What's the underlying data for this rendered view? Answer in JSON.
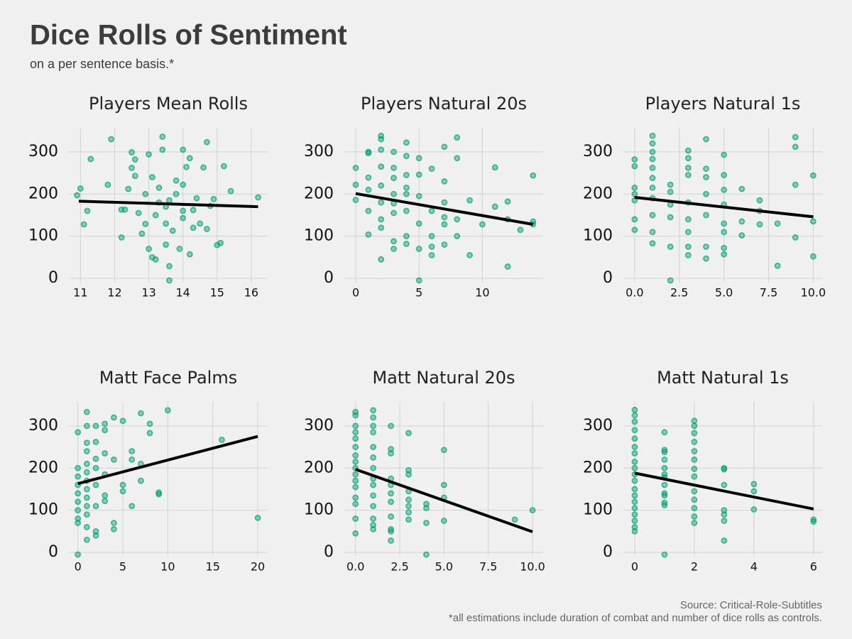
{
  "title": "Dice Rolls of Sentiment",
  "subtitle": "on a per sentence basis.*",
  "source": "Source: Critical-Role-Subtitles",
  "footnote": "*all estimations include duration of combat and number of dice rolls as controls.",
  "chart_data": [
    {
      "type": "scatter",
      "title": "Players Mean Rolls",
      "color": "#009e73",
      "grid": true,
      "xlim": [
        10.66,
        16.48
      ],
      "ylim": [
        -10,
        357
      ],
      "xticks": [
        11,
        12,
        13,
        14,
        15,
        16
      ],
      "yticks": [
        0,
        100,
        200,
        300
      ],
      "x": [
        10.9,
        11,
        11.1,
        11.2,
        11.3,
        11.8,
        11.9,
        12.2,
        12.2,
        12.3,
        12.4,
        12.5,
        12.5,
        12.6,
        12.6,
        12.7,
        12.8,
        12.9,
        13,
        13,
        13.1,
        13.1,
        13.2,
        13.3,
        13.3,
        13.4,
        13.4,
        13.5,
        13.5,
        13.6,
        13.6,
        13.7,
        13.8,
        13.9,
        14,
        14,
        14,
        14.1,
        14.2,
        14.2,
        14.3,
        14.4,
        14.5,
        14.6,
        14.7,
        14.7,
        14.8,
        14.9,
        15,
        15.1,
        15.2,
        15.4,
        16.2,
        13.6,
        13.2,
        12.9,
        13.5,
        14.3,
        13.8,
        14
      ],
      "values": [
        197,
        213,
        128,
        160,
        283,
        222,
        330,
        97,
        163,
        163,
        212,
        299,
        262,
        243,
        282,
        155,
        106,
        129,
        70,
        294,
        50,
        240,
        45,
        180,
        215,
        336,
        305,
        130,
        80,
        185,
        29,
        113,
        232,
        70,
        305,
        222,
        143,
        264,
        285,
        57,
        162,
        190,
        130,
        263,
        323,
        117,
        172,
        188,
        79,
        84,
        266,
        207,
        192,
        -5,
        150,
        200,
        170,
        120,
        200,
        160
      ],
      "trend": {
        "x": [
          10.95,
          16.2
        ],
        "values": [
          183,
          170
        ],
        "color": "#000000"
      }
    },
    {
      "type": "scatter",
      "title": "Players Natural 20s",
      "color": "#009e73",
      "grid": true,
      "xlim": [
        -0.9,
        14.8
      ],
      "ylim": [
        -10,
        357
      ],
      "xticks": [
        0,
        5,
        10
      ],
      "yticks": [
        0,
        100,
        200,
        300
      ],
      "x": [
        0,
        0,
        0,
        1,
        1,
        1,
        1,
        1,
        1,
        2,
        2,
        2,
        2,
        2,
        2,
        2,
        2,
        2,
        3,
        3,
        3,
        3,
        3,
        3,
        3,
        3,
        4,
        4,
        4,
        4,
        4,
        4,
        4,
        4,
        5,
        5,
        5,
        5,
        5,
        5,
        6,
        6,
        6,
        6,
        6,
        7,
        7,
        7,
        7,
        7,
        7,
        8,
        8,
        8,
        8,
        9,
        9,
        10,
        11,
        11,
        12,
        12,
        12,
        13,
        14,
        14,
        14
      ],
      "values": [
        262,
        222,
        186,
        297,
        300,
        239,
        210,
        160,
        104,
        338,
        330,
        305,
        265,
        220,
        180,
        140,
        120,
        45,
        300,
        262,
        238,
        200,
        178,
        155,
        88,
        70,
        322,
        290,
        245,
        215,
        200,
        160,
        100,
        82,
        285,
        246,
        195,
        130,
        70,
        -5,
        260,
        160,
        100,
        75,
        55,
        312,
        230,
        180,
        145,
        128,
        80,
        334,
        285,
        140,
        100,
        185,
        55,
        128,
        263,
        170,
        182,
        140,
        28,
        115,
        244,
        135,
        128
      ],
      "trend": {
        "x": [
          0,
          14
        ],
        "values": [
          201,
          128
        ],
        "color": "#000000"
      }
    },
    {
      "type": "scatter",
      "title": "Players Natural 1s",
      "color": "#009e73",
      "grid": true,
      "xlim": [
        -0.63,
        10.5
      ],
      "ylim": [
        -10,
        357
      ],
      "xticks": [
        {
          "value": 0,
          "label": "0.0"
        },
        {
          "value": 2.5,
          "label": "2.5"
        },
        {
          "value": 5,
          "label": "5.0"
        },
        {
          "value": 7.5,
          "label": "7.5"
        },
        {
          "value": 10,
          "label": "10.0"
        }
      ],
      "yticks": [
        0,
        100,
        200,
        300
      ],
      "x": [
        0,
        0,
        0,
        0,
        0,
        0,
        0,
        1,
        1,
        1,
        1,
        1,
        1,
        1,
        1,
        1,
        1,
        1,
        2,
        2,
        2,
        2,
        2,
        2,
        3,
        3,
        3,
        3,
        3,
        3,
        3,
        3,
        3,
        4,
        4,
        4,
        4,
        4,
        4,
        4,
        5,
        5,
        5,
        5,
        5,
        5,
        5,
        5,
        6,
        6,
        6,
        7,
        7,
        7,
        8,
        8,
        9,
        9,
        9,
        9,
        10,
        10,
        10
      ],
      "values": [
        282,
        266,
        215,
        200,
        185,
        140,
        115,
        338,
        320,
        300,
        283,
        262,
        238,
        215,
        190,
        150,
        110,
        83,
        222,
        205,
        175,
        145,
        75,
        -5,
        303,
        285,
        262,
        245,
        180,
        140,
        110,
        75,
        55,
        330,
        260,
        240,
        200,
        150,
        75,
        47,
        293,
        245,
        210,
        175,
        130,
        110,
        72,
        57,
        212,
        135,
        102,
        185,
        160,
        128,
        130,
        30,
        335,
        312,
        222,
        97,
        244,
        135,
        52
      ],
      "trend": {
        "x": [
          0,
          10
        ],
        "values": [
          192,
          146
        ],
        "color": "#000000"
      }
    },
    {
      "type": "scatter",
      "title": "Matt Face Palms",
      "color": "#009e73",
      "grid": true,
      "xlim": [
        -1.0,
        21.1
      ],
      "ylim": [
        -10,
        357
      ],
      "xticks": [
        0,
        5,
        10,
        15,
        20
      ],
      "yticks": [
        0,
        100,
        200,
        300
      ],
      "x": [
        0,
        0,
        0,
        0,
        0,
        0,
        0,
        0,
        0,
        0,
        1,
        1,
        1,
        1,
        1,
        1,
        1,
        1,
        1,
        1,
        1,
        1,
        1,
        2,
        2,
        2,
        2,
        2,
        2,
        2,
        2,
        3,
        3,
        3,
        3,
        3,
        3,
        4,
        4,
        4,
        4,
        5,
        5,
        5,
        6,
        6,
        6,
        7,
        7,
        7,
        8,
        8,
        9,
        9,
        10,
        16,
        20
      ],
      "values": [
        285,
        200,
        180,
        160,
        140,
        120,
        100,
        80,
        70,
        -5,
        333,
        300,
        260,
        240,
        210,
        190,
        170,
        150,
        130,
        110,
        90,
        60,
        30,
        300,
        262,
        222,
        200,
        160,
        110,
        50,
        40,
        305,
        290,
        235,
        185,
        135,
        122,
        320,
        220,
        70,
        55,
        312,
        160,
        145,
        240,
        220,
        110,
        330,
        210,
        170,
        305,
        283,
        142,
        138,
        337,
        267,
        82
      ],
      "trend": {
        "x": [
          0,
          20
        ],
        "values": [
          163,
          275
        ],
        "color": "#000000"
      }
    },
    {
      "type": "scatter",
      "title": "Matt Natural 20s",
      "color": "#009e73",
      "grid": true,
      "xlim": [
        -0.63,
        10.6
      ],
      "ylim": [
        -10,
        357
      ],
      "xticks": [
        {
          "value": 0,
          "label": "0.0"
        },
        {
          "value": 2.5,
          "label": "2.5"
        },
        {
          "value": 5,
          "label": "5.0"
        },
        {
          "value": 7.5,
          "label": "7.5"
        },
        {
          "value": 10,
          "label": "10.0"
        }
      ],
      "yticks": [
        0,
        100,
        200,
        300
      ],
      "x": [
        0,
        0,
        0,
        0,
        0,
        0,
        0,
        0,
        0,
        0,
        0,
        0,
        0,
        0,
        0,
        0,
        1,
        1,
        1,
        1,
        1,
        1,
        1,
        1,
        1,
        1,
        1,
        1,
        1,
        1,
        2,
        2,
        2,
        2,
        2,
        2,
        2,
        2,
        2,
        2,
        2,
        3,
        3,
        3,
        3,
        3,
        3,
        3,
        3,
        4,
        4,
        4,
        4,
        5,
        5,
        5,
        5,
        9,
        10
      ],
      "values": [
        333,
        325,
        300,
        285,
        270,
        250,
        230,
        215,
        200,
        185,
        170,
        155,
        130,
        115,
        80,
        45,
        337,
        320,
        300,
        285,
        250,
        225,
        200,
        175,
        160,
        135,
        110,
        80,
        65,
        55,
        300,
        245,
        235,
        175,
        160,
        140,
        120,
        85,
        55,
        50,
        28,
        283,
        195,
        185,
        145,
        125,
        110,
        95,
        78,
        115,
        105,
        70,
        -5,
        243,
        160,
        130,
        75,
        78,
        100
      ],
      "trend": {
        "x": [
          0,
          10
        ],
        "values": [
          197,
          49
        ],
        "color": "#000000"
      }
    },
    {
      "type": "scatter",
      "title": "Matt Natural 1s",
      "color": "#009e73",
      "grid": true,
      "xlim": [
        -0.38,
        6.29
      ],
      "ylim": [
        -10,
        357
      ],
      "xticks": [
        0,
        2,
        4,
        6
      ],
      "yticks": [
        0,
        100,
        200,
        300
      ],
      "x": [
        0,
        0,
        0,
        0,
        0,
        0,
        0,
        0,
        0,
        0,
        0,
        0,
        0,
        0,
        0,
        0,
        0,
        0,
        0,
        1,
        1,
        1,
        1,
        1,
        1,
        1,
        1,
        1,
        1,
        1,
        1,
        1,
        2,
        2,
        2,
        2,
        2,
        2,
        2,
        2,
        2,
        2,
        2,
        2,
        2,
        3,
        3,
        3,
        3,
        3,
        3,
        3,
        4,
        4,
        4,
        6,
        6
      ],
      "values": [
        338,
        325,
        310,
        290,
        270,
        250,
        235,
        215,
        200,
        185,
        170,
        150,
        135,
        120,
        105,
        90,
        75,
        60,
        50,
        285,
        243,
        238,
        220,
        200,
        185,
        178,
        160,
        140,
        135,
        118,
        112,
        -5,
        312,
        300,
        283,
        262,
        240,
        220,
        198,
        180,
        145,
        125,
        105,
        85,
        70,
        200,
        197,
        160,
        100,
        90,
        75,
        28,
        162,
        145,
        102,
        78,
        73
      ],
      "trend": {
        "x": [
          0,
          6
        ],
        "values": [
          188,
          103
        ],
        "color": "#000000"
      }
    }
  ]
}
